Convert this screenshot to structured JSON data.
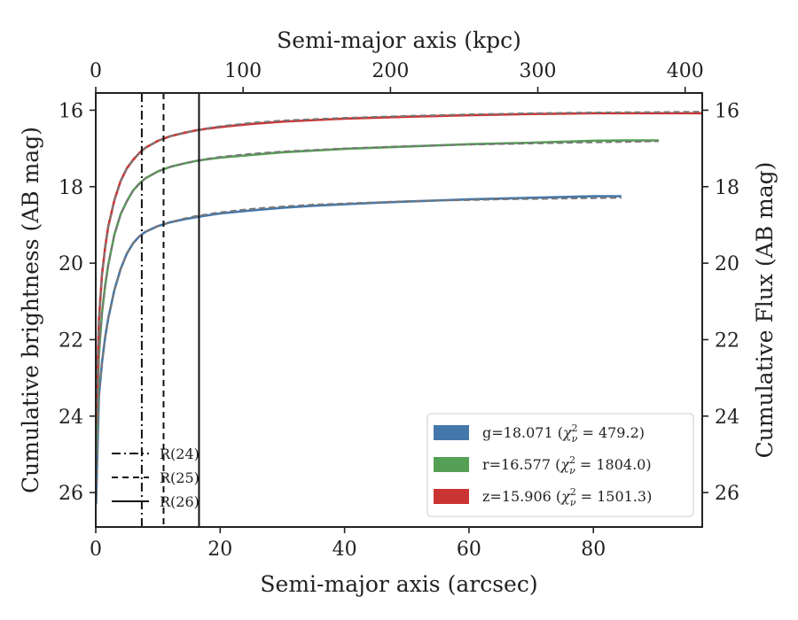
{
  "chart_data": {
    "type": "line",
    "xlabel": "Semi-major axis (arcsec)",
    "ylabel": "Cumulative brightness (AB mag)",
    "top_xlabel": "Semi-major axis (kpc)",
    "right_ylabel": "Cumulative Flux (AB mag)",
    "xlim": [
      0,
      97.5
    ],
    "ylim": [
      26.9,
      15.55
    ],
    "top_xlim": [
      0,
      411.6
    ],
    "x_ticks": [
      "0",
      "20",
      "40",
      "60",
      "80"
    ],
    "x_tick_values": [
      0,
      20,
      40,
      60,
      80
    ],
    "top_ticks": [
      "0",
      "100",
      "200",
      "300",
      "400"
    ],
    "top_tick_values": [
      0,
      100,
      200,
      300,
      400
    ],
    "y_ticks": [
      "16",
      "18",
      "20",
      "22",
      "24",
      "26"
    ],
    "y_tick_values": [
      16,
      18,
      20,
      22,
      24,
      26
    ],
    "right_y_ticks": [
      "16",
      "18",
      "20",
      "22",
      "24",
      "26"
    ],
    "series": [
      {
        "name": "g",
        "legend": "g=18.071 (χ²ᵥ = 479.2)",
        "legend_main": "g=18.071 (",
        "legend_chi": "χ",
        "legend_sup": "2",
        "legend_sub": "ν",
        "legend_tail": " = 479.2)",
        "color": "#4477aa",
        "x": [
          0.05,
          0.5,
          1,
          1.5,
          2,
          3,
          4,
          5,
          6,
          7,
          8,
          10,
          12,
          14,
          16,
          18,
          20,
          25,
          30,
          35,
          40,
          45,
          50,
          55,
          60,
          65,
          70,
          75,
          80,
          84.5
        ],
        "y": [
          26.3,
          23.5,
          22.6,
          21.95,
          21.45,
          20.7,
          20.15,
          19.75,
          19.48,
          19.3,
          19.18,
          19.03,
          18.93,
          18.86,
          18.8,
          18.75,
          18.7,
          18.62,
          18.55,
          18.5,
          18.46,
          18.42,
          18.39,
          18.36,
          18.33,
          18.31,
          18.29,
          18.27,
          18.25,
          18.25
        ],
        "model_y": [
          26.3,
          23.5,
          22.6,
          21.95,
          21.45,
          20.7,
          20.15,
          19.75,
          19.48,
          19.3,
          19.18,
          19.03,
          18.93,
          18.84,
          18.77,
          18.72,
          18.67,
          18.58,
          18.52,
          18.47,
          18.44,
          18.41,
          18.38,
          18.36,
          18.35,
          18.33,
          18.32,
          18.31,
          18.3,
          18.29
        ]
      },
      {
        "name": "r",
        "legend": "r=16.577 (χ²ᵥ = 1804.0)",
        "legend_main": "r=16.577 (",
        "legend_chi": "χ",
        "legend_sup": "2",
        "legend_sub": "ν",
        "legend_tail": " = 1804.0)",
        "color": "#55a055",
        "x": [
          0.05,
          0.5,
          1,
          1.5,
          2,
          3,
          4,
          5,
          6,
          7,
          8,
          10,
          12,
          14,
          16,
          18,
          20,
          25,
          30,
          40,
          50,
          60,
          70,
          80,
          85,
          90.5
        ],
        "y": [
          25.0,
          22.4,
          21.3,
          20.6,
          20.05,
          19.25,
          18.72,
          18.38,
          18.1,
          17.92,
          17.78,
          17.6,
          17.48,
          17.4,
          17.33,
          17.28,
          17.24,
          17.17,
          17.1,
          17.01,
          16.95,
          16.89,
          16.85,
          16.8,
          16.79,
          16.79
        ],
        "model_y": [
          25.0,
          22.4,
          21.3,
          20.6,
          20.05,
          19.25,
          18.72,
          18.38,
          18.1,
          17.92,
          17.78,
          17.6,
          17.48,
          17.4,
          17.33,
          17.27,
          17.22,
          17.14,
          17.08,
          17.0,
          16.94,
          16.9,
          16.87,
          16.84,
          16.83,
          16.81
        ]
      },
      {
        "name": "z",
        "legend": "z=15.906 (χ²ᵥ = 1501.3)",
        "legend_main": "z=15.906 (",
        "legend_chi": "χ",
        "legend_sup": "2",
        "legend_sub": "ν",
        "legend_tail": " = 1501.3)",
        "color": "#cc3333",
        "x": [
          0.05,
          0.5,
          1,
          1.5,
          2,
          3,
          4,
          5,
          6,
          7,
          8,
          10,
          12,
          14,
          16,
          18,
          20,
          25,
          30,
          40,
          50,
          60,
          70,
          80,
          90,
          97.5
        ],
        "y": [
          24.2,
          21.5,
          20.3,
          19.6,
          19.05,
          18.35,
          17.85,
          17.52,
          17.3,
          17.12,
          16.98,
          16.8,
          16.68,
          16.6,
          16.53,
          16.48,
          16.44,
          16.36,
          16.3,
          16.22,
          16.17,
          16.13,
          16.1,
          16.08,
          16.08,
          16.08
        ],
        "model_y": [
          24.2,
          21.5,
          20.3,
          19.6,
          19.05,
          18.35,
          17.85,
          17.52,
          17.3,
          17.12,
          16.98,
          16.8,
          16.68,
          16.6,
          16.53,
          16.47,
          16.42,
          16.33,
          16.27,
          16.2,
          16.15,
          16.11,
          16.08,
          16.06,
          16.05,
          16.04
        ]
      }
    ],
    "model_line": {
      "color": "#777777",
      "style": "dashed"
    },
    "radii": [
      {
        "label": "R(24)",
        "x": 7.4,
        "style": "dashdot"
      },
      {
        "label": "R(25)",
        "x": 10.9,
        "style": "dashed"
      },
      {
        "label": "R(26)",
        "x": 16.6,
        "style": "solid"
      }
    ],
    "legend_placement": "lower-right",
    "radii_legend_placement": "lower-left"
  }
}
